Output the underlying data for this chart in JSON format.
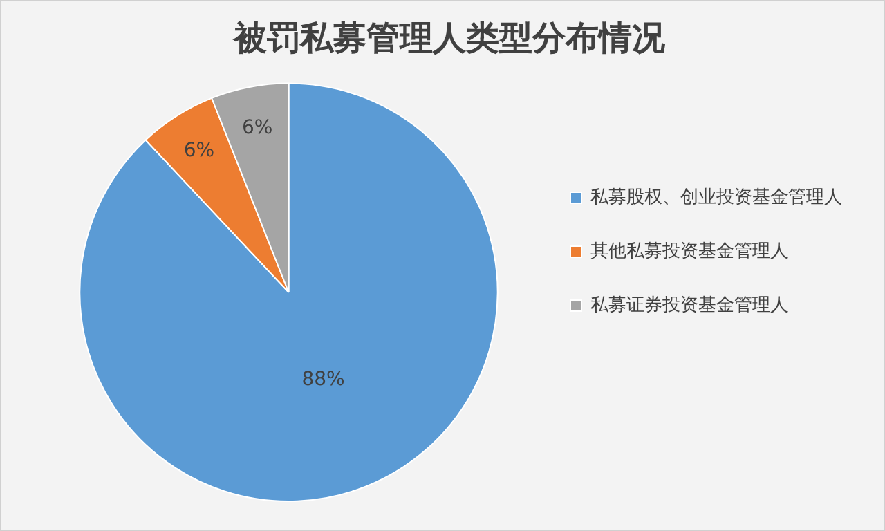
{
  "chart_data": {
    "type": "pie",
    "title": "被罚私募管理人类型分布情况",
    "categories": [
      "私募股权、创业投资基金管理人",
      "其他私募投资基金管理人",
      "私募证券投资基金管理人"
    ],
    "values": [
      88,
      6,
      6
    ],
    "value_labels": [
      "88%",
      "6%",
      "6%"
    ],
    "colors": [
      "#5b9bd5",
      "#ed7d31",
      "#a5a5a5"
    ],
    "legend": "right"
  }
}
